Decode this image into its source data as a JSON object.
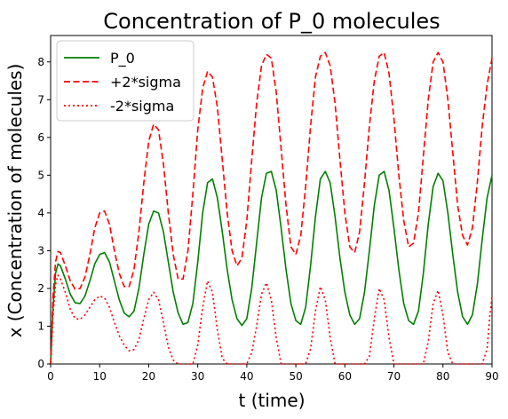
{
  "chart_data": {
    "type": "line",
    "title": "Concentration of P_0 molecules",
    "xlabel": "t (time)",
    "ylabel": "x (Concentration of molecules)",
    "xlim": [
      0,
      90
    ],
    "ylim": [
      0,
      8.7
    ],
    "xticks": [
      0,
      10,
      20,
      30,
      40,
      50,
      60,
      70,
      80,
      90
    ],
    "yticks": [
      0,
      1,
      2,
      3,
      4,
      5,
      6,
      7,
      8
    ],
    "grid": false,
    "legend_position": "upper-left",
    "series": [
      {
        "name": "P_0",
        "color": "#008000",
        "style": "solid",
        "points": [
          [
            0,
            0
          ],
          [
            0.5,
            1.5
          ],
          [
            1,
            2.4
          ],
          [
            1.5,
            2.65
          ],
          [
            2,
            2.6
          ],
          [
            3,
            2.25
          ],
          [
            4,
            1.85
          ],
          [
            5,
            1.62
          ],
          [
            6,
            1.6
          ],
          [
            7,
            1.8
          ],
          [
            8,
            2.2
          ],
          [
            9,
            2.65
          ],
          [
            10,
            2.9
          ],
          [
            11,
            2.95
          ],
          [
            12,
            2.7
          ],
          [
            13,
            2.2
          ],
          [
            14,
            1.7
          ],
          [
            15,
            1.35
          ],
          [
            16,
            1.25
          ],
          [
            17,
            1.4
          ],
          [
            18,
            2.0
          ],
          [
            19,
            2.9
          ],
          [
            20,
            3.7
          ],
          [
            21,
            4.05
          ],
          [
            22,
            4.0
          ],
          [
            23,
            3.5
          ],
          [
            24,
            2.7
          ],
          [
            25,
            1.9
          ],
          [
            26,
            1.35
          ],
          [
            27,
            1.05
          ],
          [
            28,
            1.1
          ],
          [
            29,
            1.6
          ],
          [
            30,
            2.7
          ],
          [
            31,
            4.0
          ],
          [
            32,
            4.8
          ],
          [
            33,
            4.9
          ],
          [
            34,
            4.4
          ],
          [
            35,
            3.5
          ],
          [
            36,
            2.5
          ],
          [
            37,
            1.7
          ],
          [
            38,
            1.2
          ],
          [
            39,
            1.02
          ],
          [
            40,
            1.2
          ],
          [
            41,
            2.0
          ],
          [
            42,
            3.2
          ],
          [
            43,
            4.4
          ],
          [
            44,
            5.05
          ],
          [
            45,
            5.1
          ],
          [
            46,
            4.6
          ],
          [
            47,
            3.6
          ],
          [
            48,
            2.5
          ],
          [
            49,
            1.6
          ],
          [
            50,
            1.15
          ],
          [
            51,
            1.05
          ],
          [
            52,
            1.5
          ],
          [
            53,
            2.6
          ],
          [
            54,
            3.9
          ],
          [
            55,
            4.9
          ],
          [
            56,
            5.1
          ],
          [
            57,
            4.8
          ],
          [
            58,
            3.9
          ],
          [
            59,
            2.8
          ],
          [
            60,
            1.9
          ],
          [
            61,
            1.3
          ],
          [
            62,
            1.05
          ],
          [
            63,
            1.2
          ],
          [
            64,
            1.9
          ],
          [
            65,
            3.0
          ],
          [
            66,
            4.2
          ],
          [
            67,
            5.0
          ],
          [
            68,
            5.1
          ],
          [
            69,
            4.6
          ],
          [
            70,
            3.6
          ],
          [
            71,
            2.5
          ],
          [
            72,
            1.6
          ],
          [
            73,
            1.15
          ],
          [
            74,
            1.05
          ],
          [
            75,
            1.4
          ],
          [
            76,
            2.4
          ],
          [
            77,
            3.7
          ],
          [
            78,
            4.7
          ],
          [
            79,
            5.05
          ],
          [
            80,
            4.85
          ],
          [
            81,
            4.0
          ],
          [
            82,
            2.9
          ],
          [
            83,
            1.9
          ],
          [
            84,
            1.25
          ],
          [
            85,
            1.05
          ],
          [
            86,
            1.3
          ],
          [
            87,
            2.1
          ],
          [
            88,
            3.3
          ],
          [
            89,
            4.4
          ],
          [
            90,
            5.0
          ]
        ]
      },
      {
        "name": "+2*sigma",
        "color": "#ff0000",
        "style": "dashed",
        "points": [
          [
            0,
            0
          ],
          [
            0.5,
            1.8
          ],
          [
            1,
            2.7
          ],
          [
            1.5,
            2.98
          ],
          [
            2,
            2.95
          ],
          [
            3,
            2.6
          ],
          [
            4,
            2.2
          ],
          [
            5,
            1.98
          ],
          [
            6,
            2.0
          ],
          [
            7,
            2.3
          ],
          [
            8,
            2.9
          ],
          [
            9,
            3.6
          ],
          [
            10,
            4.0
          ],
          [
            11,
            4.05
          ],
          [
            12,
            3.7
          ],
          [
            13,
            3.0
          ],
          [
            14,
            2.4
          ],
          [
            15,
            2.05
          ],
          [
            16,
            2.05
          ],
          [
            17,
            2.5
          ],
          [
            18,
            3.5
          ],
          [
            19,
            4.8
          ],
          [
            20,
            5.9
          ],
          [
            21,
            6.35
          ],
          [
            22,
            6.2
          ],
          [
            23,
            5.3
          ],
          [
            24,
            4.0
          ],
          [
            25,
            2.9
          ],
          [
            26,
            2.25
          ],
          [
            27,
            2.25
          ],
          [
            28,
            3.0
          ],
          [
            29,
            4.5
          ],
          [
            30,
            6.2
          ],
          [
            31,
            7.3
          ],
          [
            32,
            7.75
          ],
          [
            33,
            7.6
          ],
          [
            34,
            6.8
          ],
          [
            35,
            5.4
          ],
          [
            36,
            4.0
          ],
          [
            37,
            3.0
          ],
          [
            38,
            2.6
          ],
          [
            39,
            2.8
          ],
          [
            40,
            3.8
          ],
          [
            41,
            5.4
          ],
          [
            42,
            6.9
          ],
          [
            43,
            7.9
          ],
          [
            44,
            8.2
          ],
          [
            45,
            8.1
          ],
          [
            46,
            7.2
          ],
          [
            47,
            5.7
          ],
          [
            48,
            4.2
          ],
          [
            49,
            3.1
          ],
          [
            50,
            2.9
          ],
          [
            51,
            3.4
          ],
          [
            52,
            4.7
          ],
          [
            53,
            6.3
          ],
          [
            54,
            7.6
          ],
          [
            55,
            8.15
          ],
          [
            56,
            8.25
          ],
          [
            57,
            7.9
          ],
          [
            58,
            6.9
          ],
          [
            59,
            5.4
          ],
          [
            60,
            4.0
          ],
          [
            61,
            3.1
          ],
          [
            62,
            2.95
          ],
          [
            63,
            3.5
          ],
          [
            64,
            4.8
          ],
          [
            65,
            6.3
          ],
          [
            66,
            7.5
          ],
          [
            67,
            8.15
          ],
          [
            68,
            8.25
          ],
          [
            69,
            7.7
          ],
          [
            70,
            6.5
          ],
          [
            71,
            5.0
          ],
          [
            72,
            3.8
          ],
          [
            73,
            3.1
          ],
          [
            74,
            3.2
          ],
          [
            75,
            4.0
          ],
          [
            76,
            5.5
          ],
          [
            77,
            7.0
          ],
          [
            78,
            8.0
          ],
          [
            79,
            8.25
          ],
          [
            80,
            8.0
          ],
          [
            81,
            7.0
          ],
          [
            82,
            5.6
          ],
          [
            83,
            4.2
          ],
          [
            84,
            3.4
          ],
          [
            85,
            3.15
          ],
          [
            86,
            3.6
          ],
          [
            87,
            4.8
          ],
          [
            88,
            6.3
          ],
          [
            89,
            7.4
          ],
          [
            90,
            8.1
          ]
        ]
      },
      {
        "name": "-2*sigma",
        "color": "#ff0000",
        "style": "dotted",
        "points": [
          [
            0,
            0
          ],
          [
            0.5,
            1.3
          ],
          [
            1,
            2.1
          ],
          [
            1.5,
            2.35
          ],
          [
            2,
            2.25
          ],
          [
            3,
            1.9
          ],
          [
            4,
            1.45
          ],
          [
            5,
            1.2
          ],
          [
            6,
            1.18
          ],
          [
            7,
            1.3
          ],
          [
            8,
            1.5
          ],
          [
            9,
            1.7
          ],
          [
            10,
            1.8
          ],
          [
            11,
            1.75
          ],
          [
            12,
            1.5
          ],
          [
            13,
            1.1
          ],
          [
            14,
            0.75
          ],
          [
            15,
            0.5
          ],
          [
            16,
            0.35
          ],
          [
            17,
            0.38
          ],
          [
            18,
            0.65
          ],
          [
            19,
            1.2
          ],
          [
            20,
            1.7
          ],
          [
            21,
            1.9
          ],
          [
            22,
            1.7
          ],
          [
            23,
            1.1
          ],
          [
            24,
            0.45
          ],
          [
            25,
            0.1
          ],
          [
            26,
            0
          ],
          [
            27,
            0
          ],
          [
            28,
            0
          ],
          [
            29,
            0
          ],
          [
            30,
            0.5
          ],
          [
            31,
            1.5
          ],
          [
            32,
            2.2
          ],
          [
            33,
            1.9
          ],
          [
            34,
            0.9
          ],
          [
            35,
            0.15
          ],
          [
            36,
            0
          ],
          [
            38,
            0
          ],
          [
            40,
            0
          ],
          [
            41,
            0.3
          ],
          [
            42,
            1.0
          ],
          [
            43,
            1.85
          ],
          [
            44,
            2.15
          ],
          [
            45,
            1.7
          ],
          [
            46,
            0.7
          ],
          [
            47,
            0
          ],
          [
            50,
            0
          ],
          [
            52,
            0
          ],
          [
            53,
            0.4
          ],
          [
            54,
            1.4
          ],
          [
            55,
            2.05
          ],
          [
            56,
            1.7
          ],
          [
            57,
            0.7
          ],
          [
            58,
            0
          ],
          [
            62,
            0
          ],
          [
            64,
            0
          ],
          [
            65,
            0.2
          ],
          [
            66,
            1.2
          ],
          [
            67,
            2.0
          ],
          [
            68,
            1.7
          ],
          [
            69,
            0.7
          ],
          [
            70,
            0
          ],
          [
            74,
            0
          ],
          [
            76,
            0
          ],
          [
            77,
            0.6
          ],
          [
            78,
            1.6
          ],
          [
            79,
            1.95
          ],
          [
            80,
            1.3
          ],
          [
            81,
            0.3
          ],
          [
            82,
            0
          ],
          [
            86,
            0
          ],
          [
            88,
            0
          ],
          [
            89,
            0.4
          ],
          [
            89.5,
            1.2
          ],
          [
            90,
            1.8
          ]
        ]
      }
    ]
  }
}
